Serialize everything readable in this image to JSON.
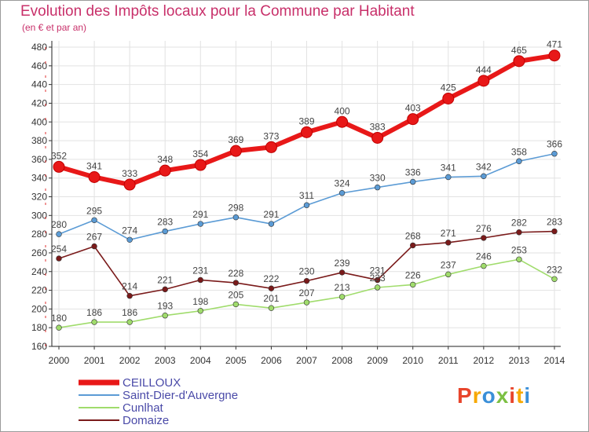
{
  "header": {
    "title": "Evolution des Impôts locaux pour la Commune par Habitant",
    "subtitle": "(en € et par an)"
  },
  "logo": {
    "text": "Proxiti",
    "colors": [
      "#e8452c",
      "#f7a800",
      "#3a8fd8",
      "#7cc043"
    ]
  },
  "chart_data": {
    "type": "line",
    "title": "Evolution des Impôts locaux pour la Commune par Habitant",
    "subtitle": "(en € et par an)",
    "xlabel": "",
    "ylabel": "",
    "x": [
      "2000",
      "2001",
      "2002",
      "2003",
      "2004",
      "2005",
      "2006",
      "2007",
      "2008",
      "2009",
      "2010",
      "2011",
      "2012",
      "2013",
      "2014"
    ],
    "ylim": [
      160,
      480
    ],
    "yticks": [
      160,
      180,
      200,
      220,
      240,
      260,
      280,
      300,
      320,
      340,
      360,
      380,
      400,
      420,
      440,
      460,
      480
    ],
    "grid": true,
    "legend_position": "bottom-left",
    "series": [
      {
        "name": "CEILLOUX",
        "color": "#e81818",
        "values": [
          352,
          341,
          333,
          348,
          354,
          369,
          373,
          389,
          400,
          383,
          403,
          425,
          444,
          465,
          471
        ]
      },
      {
        "name": "Saint-Dier-d'Auvergne",
        "color": "#5b9bd5",
        "values": [
          280,
          295,
          274,
          283,
          291,
          298,
          291,
          311,
          324,
          330,
          336,
          341,
          342,
          358,
          366
        ]
      },
      {
        "name": "Cunlhat",
        "color": "#a0dc6c",
        "values": [
          180,
          186,
          186,
          193,
          198,
          205,
          201,
          207,
          213,
          223,
          226,
          237,
          246,
          253,
          232
        ]
      },
      {
        "name": "Domaize",
        "color": "#7a1a1a",
        "values": [
          254,
          267,
          214,
          221,
          231,
          228,
          222,
          230,
          239,
          231,
          268,
          271,
          276,
          282,
          283
        ]
      }
    ]
  }
}
